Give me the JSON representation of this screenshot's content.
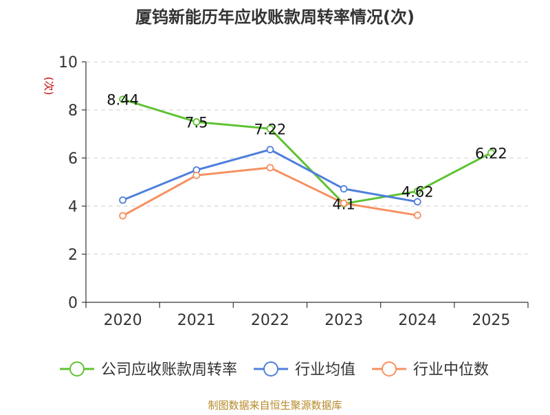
{
  "chart_data": {
    "type": "line",
    "title": "厦钨新能历年应收账款周转率情况(次)",
    "ylabel": "(次)",
    "xlabel": "",
    "categories": [
      "2020",
      "2021",
      "2022",
      "2023",
      "2024",
      "2025"
    ],
    "ylim": [
      0,
      10
    ],
    "yticks": [
      0,
      2,
      4,
      6,
      8,
      10
    ],
    "grid": true,
    "legend_position": "bottom",
    "series": [
      {
        "name": "公司应收账款周转率",
        "color": "#5ec232",
        "values": [
          8.44,
          7.5,
          7.22,
          4.1,
          4.62,
          6.22
        ],
        "labels": [
          "8.44",
          "7.5",
          "7.22",
          "4.1",
          "4.62",
          "6.22"
        ]
      },
      {
        "name": "行业均值",
        "color": "#4f7fdc",
        "values": [
          4.25,
          5.5,
          6.35,
          4.72,
          4.18,
          null
        ]
      },
      {
        "name": "行业中位数",
        "color": "#f59160",
        "values": [
          3.6,
          5.28,
          5.6,
          4.12,
          3.62,
          null
        ]
      }
    ],
    "source": "制图数据来自恒生聚源数据库"
  }
}
